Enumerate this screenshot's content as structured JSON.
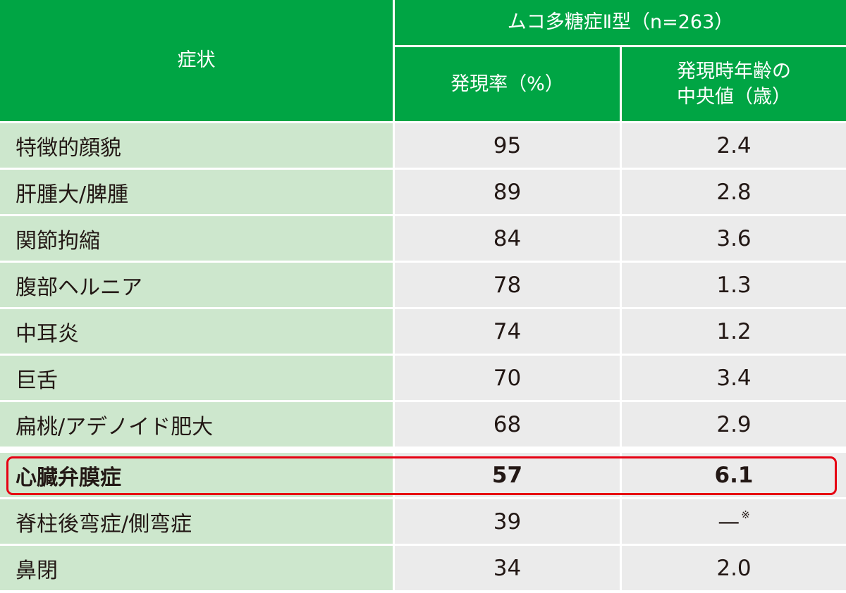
{
  "header": {
    "symptom_label": "症状",
    "group_label": "ムコ多糖症Ⅱ型（n=263）",
    "rate_label": "発現率（%）",
    "age_label_line1": "発現時年齢の",
    "age_label_line2": "中央値（歳）"
  },
  "rows": [
    {
      "symptom": "特徴的顔貌",
      "rate": "95",
      "age": "2.4"
    },
    {
      "symptom": "肝腫大/脾腫",
      "rate": "89",
      "age": "2.8"
    },
    {
      "symptom": "関節拘縮",
      "rate": "84",
      "age": "3.6"
    },
    {
      "symptom": "腹部ヘルニア",
      "rate": "78",
      "age": "1.3"
    },
    {
      "symptom": "中耳炎",
      "rate": "74",
      "age": "1.2"
    },
    {
      "symptom": "巨舌",
      "rate": "70",
      "age": "3.4"
    },
    {
      "symptom": "扁桃/アデノイド肥大",
      "rate": "68",
      "age": "2.9"
    },
    {
      "symptom": "心臓弁膜症",
      "rate": "57",
      "age": "6.1"
    },
    {
      "symptom": "脊柱後弯症/側弯症",
      "rate": "39",
      "age": "—",
      "age_note": "※"
    },
    {
      "symptom": "鼻閉",
      "rate": "34",
      "age": "2.0"
    }
  ],
  "highlight_row": 7,
  "colors": {
    "header_green": "#00a544",
    "symptom_bg": "#cde7cd",
    "value_bg": "#ebebeb",
    "highlight_border": "#e60012",
    "text": "#231815"
  }
}
